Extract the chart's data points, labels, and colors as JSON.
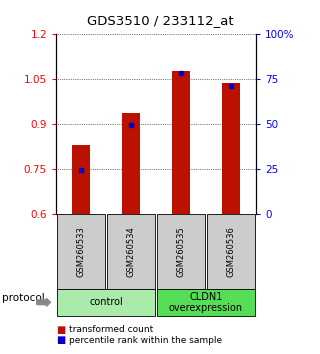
{
  "title": "GDS3510 / 233112_at",
  "samples": [
    "GSM260533",
    "GSM260534",
    "GSM260535",
    "GSM260536"
  ],
  "red_values": [
    0.83,
    0.935,
    1.075,
    1.035
  ],
  "blue_values": [
    0.748,
    0.895,
    1.068,
    1.025
  ],
  "ylim_left": [
    0.6,
    1.2
  ],
  "ylim_right": [
    0,
    100
  ],
  "yticks_left": [
    0.6,
    0.75,
    0.9,
    1.05,
    1.2
  ],
  "yticks_right": [
    0,
    25,
    50,
    75,
    100
  ],
  "ytick_labels_left": [
    "0.6",
    "0.75",
    "0.9",
    "1.05",
    "1.2"
  ],
  "ytick_labels_right": [
    "0",
    "25",
    "50",
    "75",
    "100%"
  ],
  "groups": [
    {
      "label": "control",
      "samples": [
        0,
        1
      ],
      "color": "#aaeaaa"
    },
    {
      "label": "CLDN1\noverexpression",
      "samples": [
        2,
        3
      ],
      "color": "#55dd55"
    }
  ],
  "red_color": "#bb1100",
  "blue_color": "#0000cc",
  "bar_width": 0.35,
  "legend_red": "transformed count",
  "legend_blue": "percentile rank within the sample",
  "protocol_label": "protocol",
  "background_color": "#ffffff",
  "plot_bg_color": "#ffffff",
  "sample_box_color": "#cccccc"
}
